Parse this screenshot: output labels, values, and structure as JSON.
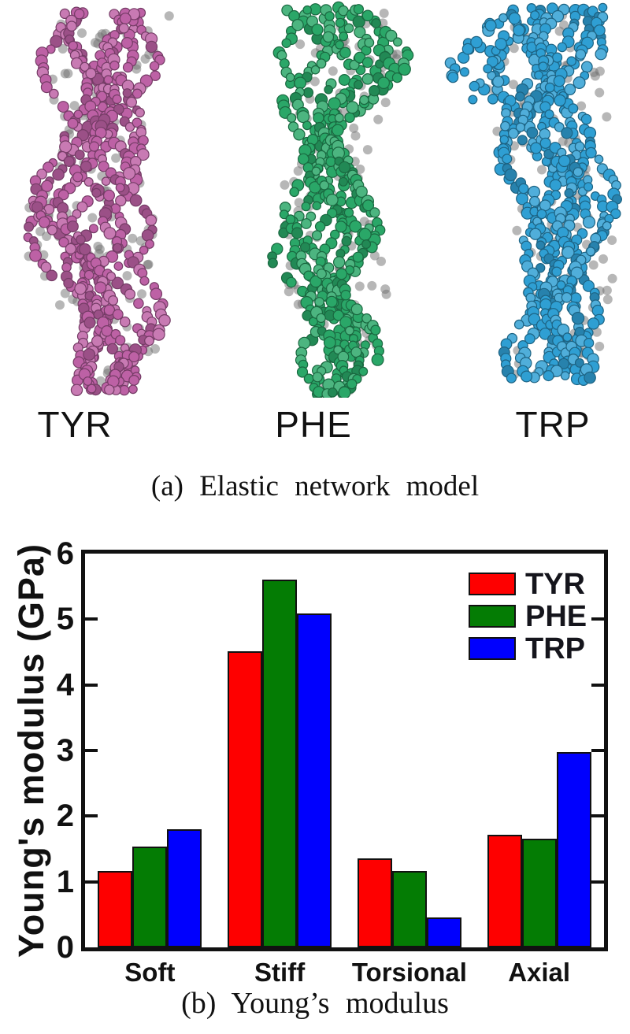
{
  "figure_a": {
    "caption": "(a) Elastic network model",
    "molecules": [
      {
        "label": "TYR",
        "color": "#bd61a5"
      },
      {
        "label": "PHE",
        "color": "#2aa768"
      },
      {
        "label": "TRP",
        "color": "#2f9fd3"
      }
    ]
  },
  "figure_b": {
    "caption": "(b) Young’s modulus"
  },
  "chart_data": {
    "type": "bar",
    "title": "",
    "xlabel": "",
    "ylabel": "Young's modulus (GPa)",
    "categories": [
      "Soft",
      "Stiff",
      "Torsional",
      "Axial"
    ],
    "series": [
      {
        "name": "TYR",
        "color": "#fe0000",
        "values": [
          1.17,
          4.51,
          1.36,
          1.72
        ]
      },
      {
        "name": "PHE",
        "color": "#047c04",
        "values": [
          1.53,
          5.6,
          1.17,
          1.66
        ]
      },
      {
        "name": "TRP",
        "color": "#0000fe",
        "values": [
          1.8,
          5.09,
          0.46,
          2.98
        ]
      }
    ],
    "ylim": [
      0,
      6
    ],
    "yticks": [
      0,
      1,
      2,
      3,
      4,
      5,
      6
    ],
    "grid": false,
    "legend_position": "top-right",
    "axis_color": "#111111"
  }
}
